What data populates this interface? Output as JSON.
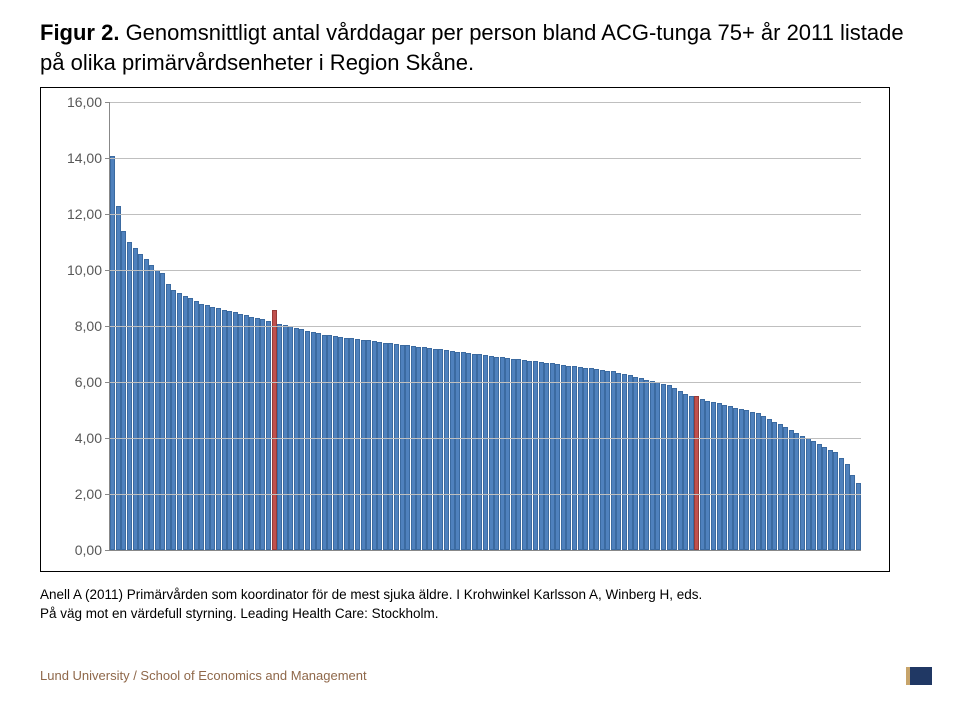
{
  "title_bold": "Figur 2.",
  "title_rest": " Genomsnittligt antal vårddagar per person bland ACG-tunga 75+ år 2011 listade på olika primärvårdsenheter i Region Skåne.",
  "citation_line1": "Anell A (2011) Primärvården som koordinator för de mest sjuka äldre. I Krohwinkel Karlsson A, Winberg H, eds.",
  "citation_line2": "På väg mot en värdefull styrning. Leading Health Care: Stockholm.",
  "footer": "Lund University / School of Economics and Management",
  "chart": {
    "type": "bar",
    "ylim": [
      0,
      16
    ],
    "ytick_step": 2,
    "ytick_labels": [
      "0,00",
      "2,00",
      "4,00",
      "6,00",
      "8,00",
      "10,00",
      "12,00",
      "14,00",
      "16,00"
    ],
    "background_color": "#ffffff",
    "grid_color": "#bfbfbf",
    "axis_color": "#888888",
    "bar_color": "#4f81bd",
    "bar_border_color": "#3b6aa0",
    "highlight_color": "#c0504d",
    "highlight_border_color": "#973b38",
    "tick_label_color": "#585858",
    "tick_label_fontsize": 14,
    "highlight_indices": [
      29,
      105
    ],
    "values": [
      14.1,
      12.3,
      11.4,
      11.0,
      10.8,
      10.6,
      10.4,
      10.2,
      10.0,
      9.9,
      9.5,
      9.3,
      9.2,
      9.1,
      9.0,
      8.9,
      8.8,
      8.75,
      8.7,
      8.65,
      8.6,
      8.55,
      8.5,
      8.45,
      8.4,
      8.35,
      8.3,
      8.25,
      8.2,
      8.6,
      8.1,
      8.05,
      8.0,
      7.95,
      7.9,
      7.85,
      7.8,
      7.75,
      7.7,
      7.68,
      7.65,
      7.62,
      7.6,
      7.58,
      7.55,
      7.52,
      7.5,
      7.48,
      7.45,
      7.42,
      7.4,
      7.38,
      7.35,
      7.32,
      7.3,
      7.28,
      7.25,
      7.22,
      7.2,
      7.18,
      7.15,
      7.12,
      7.1,
      7.08,
      7.05,
      7.02,
      7.0,
      6.98,
      6.95,
      6.92,
      6.9,
      6.88,
      6.85,
      6.82,
      6.8,
      6.78,
      6.75,
      6.72,
      6.7,
      6.68,
      6.65,
      6.62,
      6.6,
      6.58,
      6.55,
      6.52,
      6.5,
      6.48,
      6.45,
      6.42,
      6.4,
      6.35,
      6.3,
      6.25,
      6.2,
      6.15,
      6.1,
      6.05,
      6.0,
      5.95,
      5.9,
      5.8,
      5.7,
      5.6,
      5.5,
      5.5,
      5.4,
      5.35,
      5.3,
      5.25,
      5.2,
      5.15,
      5.1,
      5.05,
      5.0,
      4.95,
      4.9,
      4.8,
      4.7,
      4.6,
      4.5,
      4.4,
      4.3,
      4.2,
      4.1,
      4.0,
      3.9,
      3.8,
      3.7,
      3.6,
      3.5,
      3.3,
      3.1,
      2.7,
      2.4
    ]
  }
}
